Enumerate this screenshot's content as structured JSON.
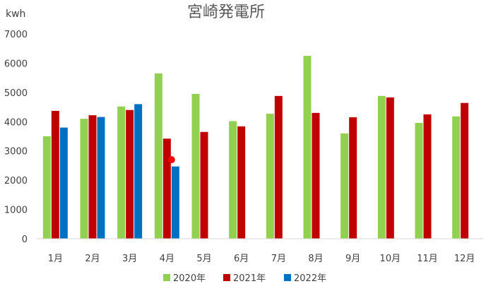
{
  "chart_data": {
    "type": "bar",
    "title": "宮崎発電所",
    "ylabel": "kwh",
    "xlabel": "",
    "ylim": [
      0,
      7000
    ],
    "yticks": [
      0,
      1000,
      2000,
      3000,
      4000,
      5000,
      6000,
      7000
    ],
    "grid": false,
    "legend_position": "bottom",
    "categories": [
      "1月",
      "2月",
      "3月",
      "4月",
      "5月",
      "6月",
      "7月",
      "8月",
      "9月",
      "10月",
      "11月",
      "12月"
    ],
    "series": [
      {
        "name": "2020年",
        "color": "#92d050",
        "values": [
          3500,
          4100,
          4520,
          5650,
          4950,
          4020,
          4270,
          6250,
          3600,
          4880,
          3960,
          4180
        ]
      },
      {
        "name": "2021年",
        "color": "#c00000",
        "values": [
          4370,
          4220,
          4400,
          3420,
          3650,
          3840,
          4880,
          4300,
          4150,
          4830,
          4250,
          4640
        ]
      },
      {
        "name": "2022年",
        "color": "#0070c0",
        "values": [
          3800,
          4160,
          4600,
          2470,
          null,
          null,
          null,
          null,
          null,
          null,
          null,
          null
        ]
      }
    ],
    "markers": [
      {
        "category": "4月",
        "value": 2700,
        "color": "#ff0000"
      }
    ]
  }
}
